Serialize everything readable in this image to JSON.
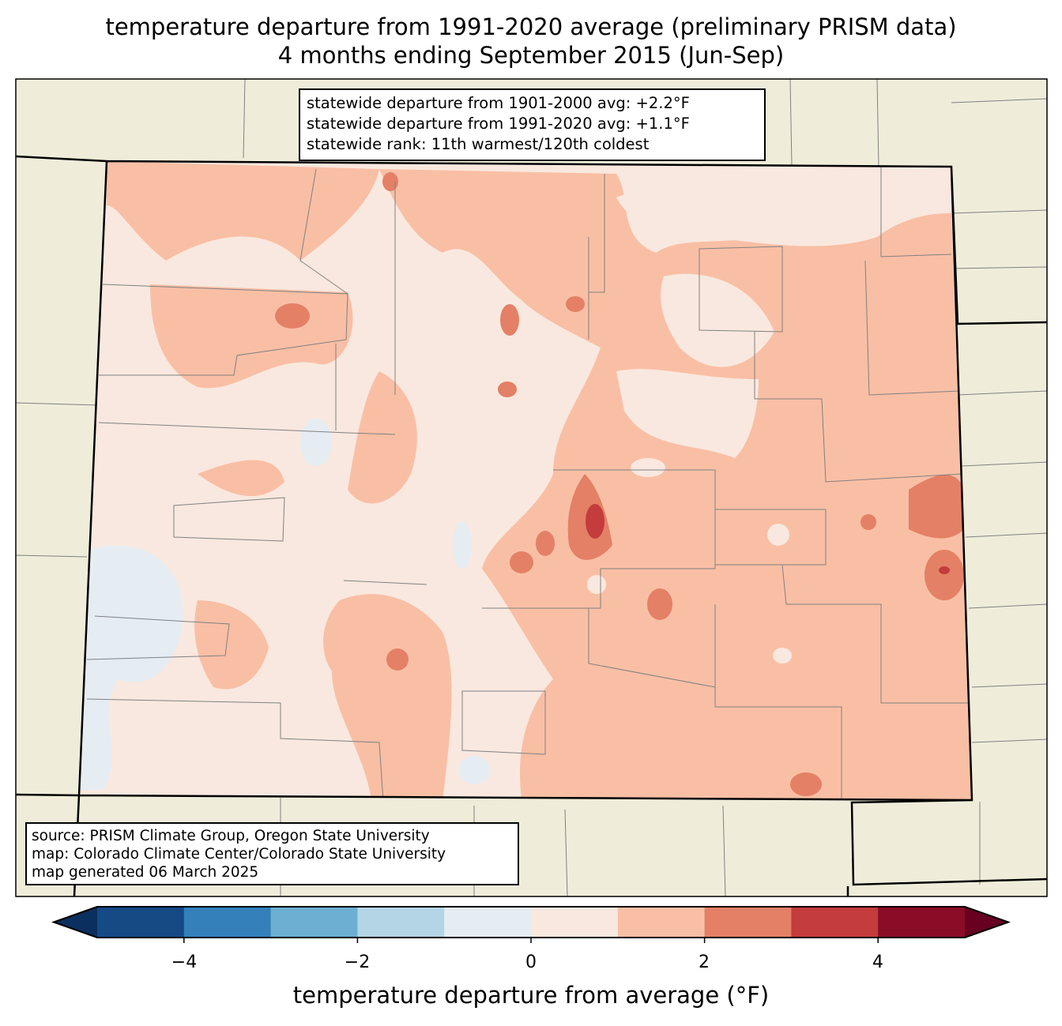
{
  "title": {
    "line1": "temperature departure from 1991-2020 average (preliminary PRISM data)",
    "line2": "4 months ending September 2015 (Jun-Sep)"
  },
  "info_box": [
    "statewide departure from 1901-2000 avg: +2.2°F",
    "statewide departure from 1991-2020 avg: +1.1°F",
    "statewide rank: 11th warmest/120th coldest"
  ],
  "source_box": [
    "source: PRISM Climate Group, Oregon State University",
    "map: Colorado Climate Center/Colorado State University",
    "map generated 06 March 2025"
  ],
  "colorbar": {
    "label": "temperature departure from average (°F)",
    "ticks": [
      "−4",
      "−2",
      "0",
      "2",
      "4"
    ],
    "range": [
      -5,
      5
    ],
    "bin_width": 1,
    "colors": [
      "#154a85",
      "#3380ba",
      "#6cafd2",
      "#b3d5e6",
      "#e5edf3",
      "#f9e8df",
      "#f9bfa5",
      "#e48066",
      "#c43c3c",
      "#8a0c26"
    ],
    "under_color": "#0b2f5e",
    "over_color": "#670021"
  },
  "map_colors": {
    "land_outside": "#efedda",
    "border": "#000000",
    "county_lines": "#808080"
  }
}
